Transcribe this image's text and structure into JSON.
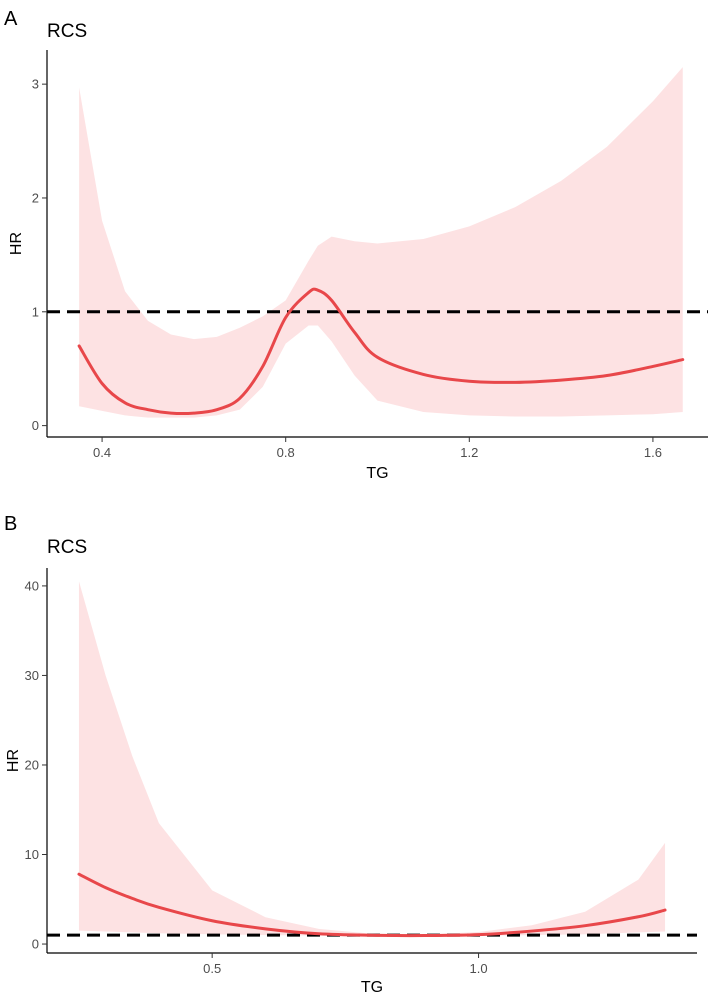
{
  "chart_data": [
    {
      "panel": "A",
      "type": "line",
      "title": "RCS",
      "xlabel": "TG",
      "ylabel": "HR",
      "xlim": [
        0.28,
        1.72
      ],
      "ylim": [
        -0.1,
        3.3
      ],
      "xticks": [
        0.4,
        0.8,
        1.2,
        1.6
      ],
      "xtick_labels": [
        "0.4",
        "0.8",
        "1.2",
        "1.6"
      ],
      "yticks": [
        0,
        1,
        2,
        3
      ],
      "ytick_labels": [
        "0",
        "1",
        "2",
        "3"
      ],
      "reference_line": 1,
      "grid": false,
      "colors": {
        "line": "#e8474a",
        "band": "#fde2e3",
        "reference": "#000000"
      },
      "series": [
        {
          "x": [
            0.35,
            0.4,
            0.45,
            0.5,
            0.55,
            0.6,
            0.65,
            0.7,
            0.75,
            0.8,
            0.85,
            0.87,
            0.9,
            0.95,
            1.0,
            1.1,
            1.2,
            1.3,
            1.4,
            1.5,
            1.6,
            1.665
          ],
          "y": [
            0.7,
            0.37,
            0.2,
            0.14,
            0.11,
            0.11,
            0.14,
            0.24,
            0.52,
            0.95,
            1.17,
            1.19,
            1.1,
            0.82,
            0.6,
            0.45,
            0.39,
            0.38,
            0.4,
            0.44,
            0.52,
            0.58
          ],
          "lower": [
            0.17,
            0.13,
            0.09,
            0.07,
            0.07,
            0.07,
            0.09,
            0.14,
            0.34,
            0.72,
            0.88,
            0.88,
            0.74,
            0.44,
            0.22,
            0.12,
            0.09,
            0.08,
            0.08,
            0.09,
            0.1,
            0.12
          ],
          "upper": [
            2.97,
            1.8,
            1.18,
            0.92,
            0.8,
            0.76,
            0.78,
            0.86,
            0.96,
            1.1,
            1.45,
            1.58,
            1.66,
            1.62,
            1.6,
            1.64,
            1.75,
            1.92,
            2.15,
            2.45,
            2.85,
            3.15
          ]
        }
      ]
    },
    {
      "panel": "B",
      "type": "line",
      "title": "RCS",
      "xlabel": "TG",
      "ylabel": "HR",
      "xlim": [
        0.19,
        1.41
      ],
      "ylim": [
        -1,
        42
      ],
      "xticks": [
        0.5,
        1.0
      ],
      "xtick_labels": [
        "0.5",
        "1.0"
      ],
      "yticks": [
        0,
        10,
        20,
        30,
        40
      ],
      "ytick_labels": [
        "0",
        "10",
        "20",
        "30",
        "40"
      ],
      "reference_line": 1,
      "grid": false,
      "colors": {
        "line": "#e8474a",
        "band": "#fde2e3",
        "reference": "#000000"
      },
      "series": [
        {
          "x": [
            0.25,
            0.3,
            0.35,
            0.4,
            0.5,
            0.6,
            0.7,
            0.8,
            0.9,
            1.0,
            1.1,
            1.2,
            1.3,
            1.35
          ],
          "y": [
            7.8,
            6.3,
            5.1,
            4.1,
            2.6,
            1.7,
            1.15,
            0.98,
            0.95,
            1.05,
            1.45,
            2.05,
            3.05,
            3.8
          ],
          "lower": [
            1.5,
            1.4,
            1.3,
            1.2,
            1.1,
            1.0,
            0.95,
            0.92,
            0.9,
            0.92,
            1.0,
            1.1,
            1.3,
            1.4
          ],
          "upper": [
            40.5,
            30.0,
            21.0,
            13.5,
            6.0,
            3.0,
            1.7,
            1.15,
            1.05,
            1.35,
            2.1,
            3.6,
            7.2,
            11.3
          ]
        }
      ]
    }
  ]
}
